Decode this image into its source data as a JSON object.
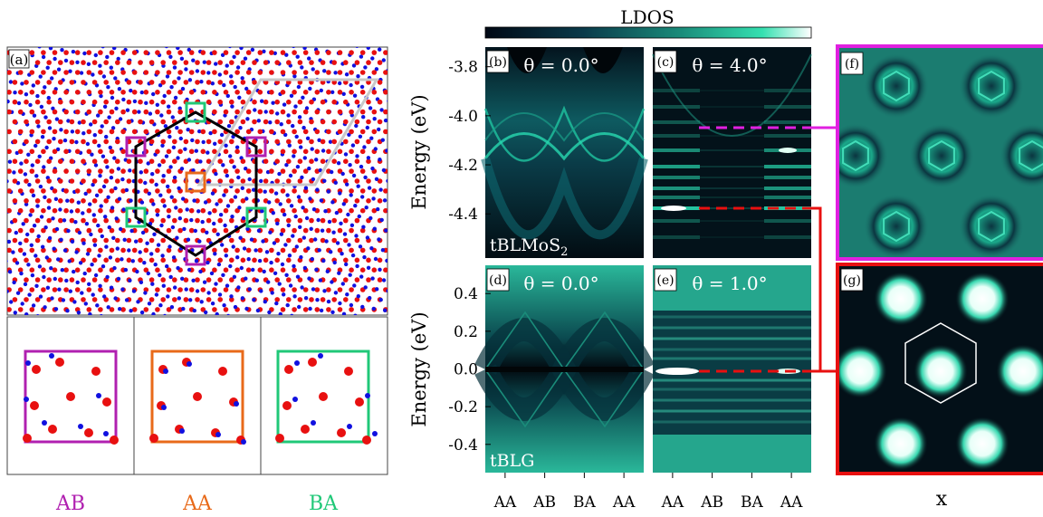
{
  "colorbar": {
    "label": "LDOS",
    "colors": [
      "#000814",
      "#0a3a4a",
      "#1a8c7a",
      "#35e0b0",
      "#ffffff"
    ]
  },
  "colors": {
    "AB": "#b020b0",
    "AA": "#e86a1a",
    "BA": "#20c878",
    "red": "#e81010",
    "magenta": "#e020e0",
    "blue": "#1010e0",
    "gray": "#c8c8c8",
    "black": "#000000"
  },
  "panel_a": {
    "tag": "(a)"
  },
  "stackings": [
    {
      "label": "AB",
      "color": "#b020b0"
    },
    {
      "label": "AA",
      "color": "#e86a1a"
    },
    {
      "label": "BA",
      "color": "#20c878"
    }
  ],
  "panels": {
    "b": {
      "tag": "(b)",
      "theta": "θ = 0.0°",
      "footer": "tBLMoS",
      "footer_sub": "2"
    },
    "c": {
      "tag": "(c)",
      "theta": "θ = 4.0°"
    },
    "d": {
      "tag": "(d)",
      "theta": "θ = 0.0°",
      "footer": "tBLG"
    },
    "e": {
      "tag": "(e)",
      "theta": "θ = 1.0°"
    },
    "f": {
      "tag": "(f)"
    },
    "g": {
      "tag": "(g)"
    }
  },
  "y_label": "Energy (eV)",
  "x_label_right": "x",
  "chart_data": [
    {
      "type": "heatmap",
      "panel": "b/c",
      "ylabel": "Energy (eV)",
      "ylim": [
        -4.58,
        -3.72
      ],
      "yticks": [
        -3.8,
        -4.0,
        -4.2,
        -4.4
      ],
      "ytick_labels": [
        "-3.8",
        "-4.0",
        "-4.2",
        "-4.4"
      ],
      "markers": [
        {
          "panel": "c",
          "energy": -4.07,
          "color": "#e020e0",
          "links_to": "f"
        },
        {
          "panel": "c",
          "energy": -4.38,
          "color": "#e81010",
          "links_to": "g"
        }
      ]
    },
    {
      "type": "heatmap",
      "panel": "d/e",
      "ylabel": "Energy (eV)",
      "ylim": [
        -0.55,
        0.55
      ],
      "yticks": [
        0.4,
        0.2,
        0.0,
        -0.2,
        -0.4
      ],
      "ytick_labels": [
        "0.4",
        "0.2",
        "0.0",
        "-0.2",
        "-0.4"
      ],
      "categories": [
        "AA",
        "AB",
        "BA",
        "AA"
      ],
      "markers": [
        {
          "panel": "e",
          "energy": 0.0,
          "color": "#e81010",
          "links_to": "g"
        }
      ]
    }
  ]
}
